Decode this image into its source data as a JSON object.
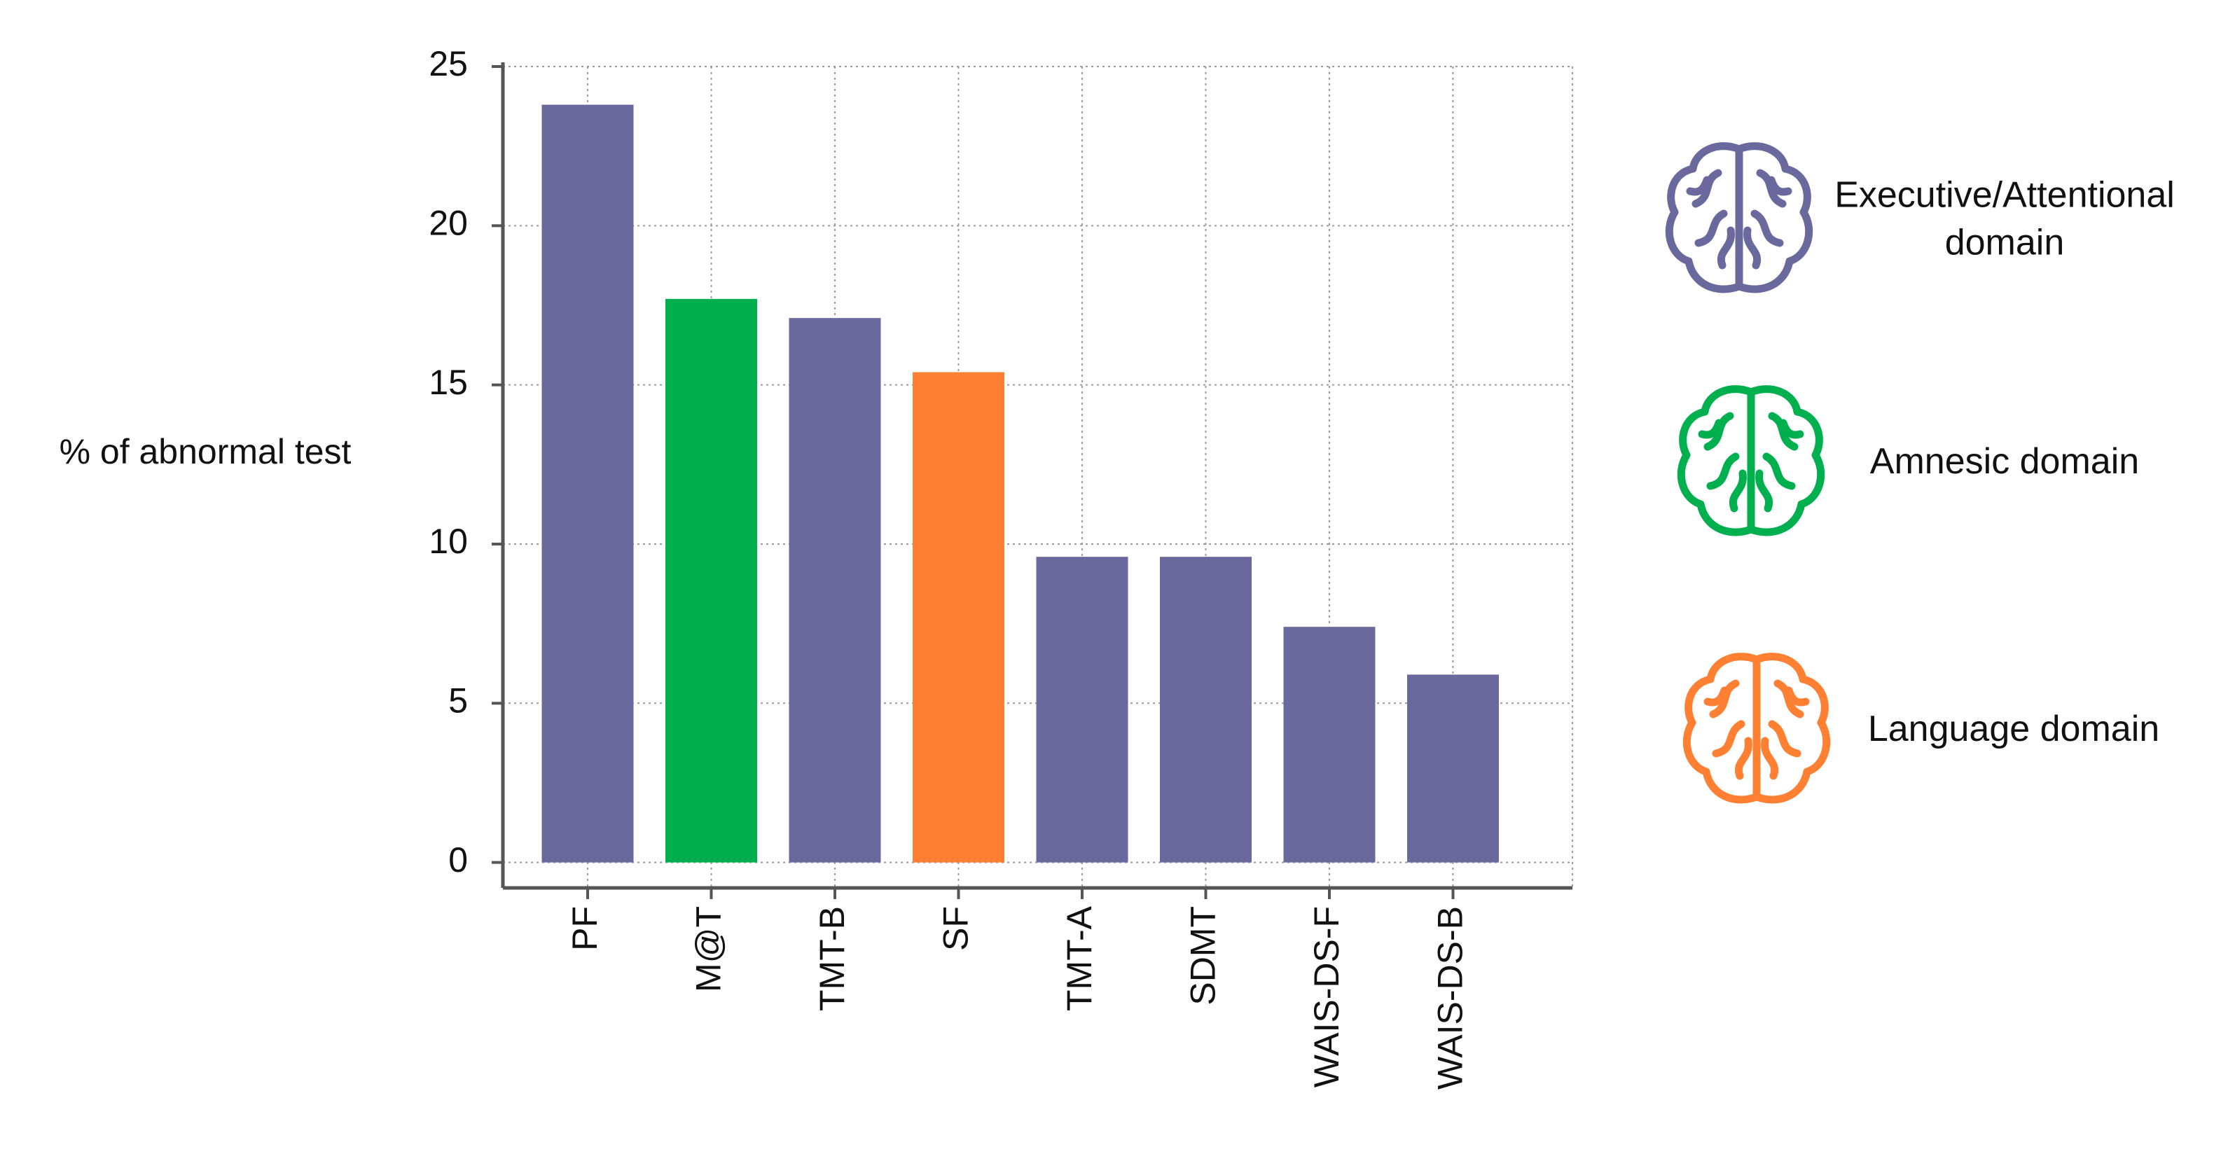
{
  "chart_data": {
    "type": "bar",
    "ylabel": "% of abnormal test",
    "categories": [
      "PF",
      "M@T",
      "TMT-B",
      "SF",
      "TMT-A",
      "SDMT",
      "WAIS-DS-F",
      "WAIS-DS-B"
    ],
    "series": [
      {
        "name": "Executive/Attentional domain",
        "color": "#69699d",
        "values": [
          23.8,
          null,
          17.1,
          null,
          9.6,
          9.6,
          7.4,
          5.9
        ]
      },
      {
        "name": "Amnesic domain",
        "color": "#00b04f",
        "values": [
          null,
          17.7,
          null,
          null,
          null,
          null,
          null,
          null
        ]
      },
      {
        "name": "Language domain",
        "color": "#ff8032",
        "values": [
          null,
          null,
          null,
          15.4,
          null,
          null,
          null,
          null
        ]
      }
    ],
    "ylim": [
      -0.8,
      25
    ],
    "yticks": [
      0,
      5,
      10,
      15,
      20,
      25
    ],
    "grid": true
  }
}
